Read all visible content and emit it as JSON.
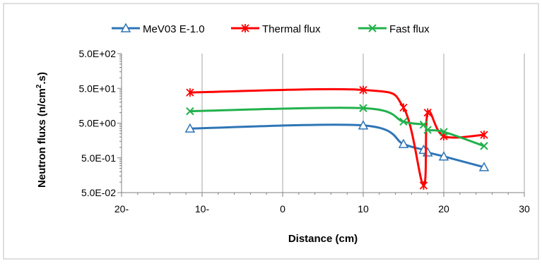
{
  "chart_data": {
    "type": "line",
    "xlabel": "Distance (cm)",
    "ylabel": {
      "prefix": "Neutron fluxs (n/cm",
      "sup": "2",
      "suffix": ".s)"
    },
    "xlim": [
      -20,
      30
    ],
    "ylim": [
      0.05,
      500
    ],
    "y_scale": "log",
    "grid": "vertical",
    "legend_position": "top",
    "x_ticks": [
      {
        "value": -20,
        "label": "20-"
      },
      {
        "value": -10,
        "label": "10-"
      },
      {
        "value": 0,
        "label": "0"
      },
      {
        "value": 10,
        "label": "10"
      },
      {
        "value": 20,
        "label": "20"
      },
      {
        "value": 30,
        "label": "30"
      }
    ],
    "y_ticks": [
      {
        "value": 0.05,
        "label": "5.0E-02"
      },
      {
        "value": 0.5,
        "label": "5.0E-01"
      },
      {
        "value": 5,
        "label": "5.0E+00"
      },
      {
        "value": 50,
        "label": "5.0E+01"
      },
      {
        "value": 500,
        "label": "5.0E+02"
      }
    ],
    "series": [
      {
        "name": "MeV03 E-1.0",
        "color": "#2e75b6",
        "marker": "triangle",
        "x": [
          -11.5,
          10,
          15,
          17.5,
          18,
          20,
          25
        ],
        "y": [
          3.5,
          4.3,
          1.25,
          0.85,
          0.72,
          0.55,
          0.27
        ]
      },
      {
        "name": "Thermal flux",
        "color": "#ff0000",
        "marker": "asterisk",
        "x": [
          -11.5,
          10,
          15,
          17.5,
          18,
          20,
          25
        ],
        "y": [
          38,
          45,
          14,
          0.08,
          10,
          2.1,
          2.3
        ]
      },
      {
        "name": "Fast flux",
        "color": "#22b14c",
        "marker": "x",
        "x": [
          -11.5,
          10,
          15,
          17.5,
          18,
          20,
          25
        ],
        "y": [
          11,
          13.5,
          5.5,
          4.5,
          3.2,
          2.8,
          1.1
        ]
      }
    ]
  }
}
